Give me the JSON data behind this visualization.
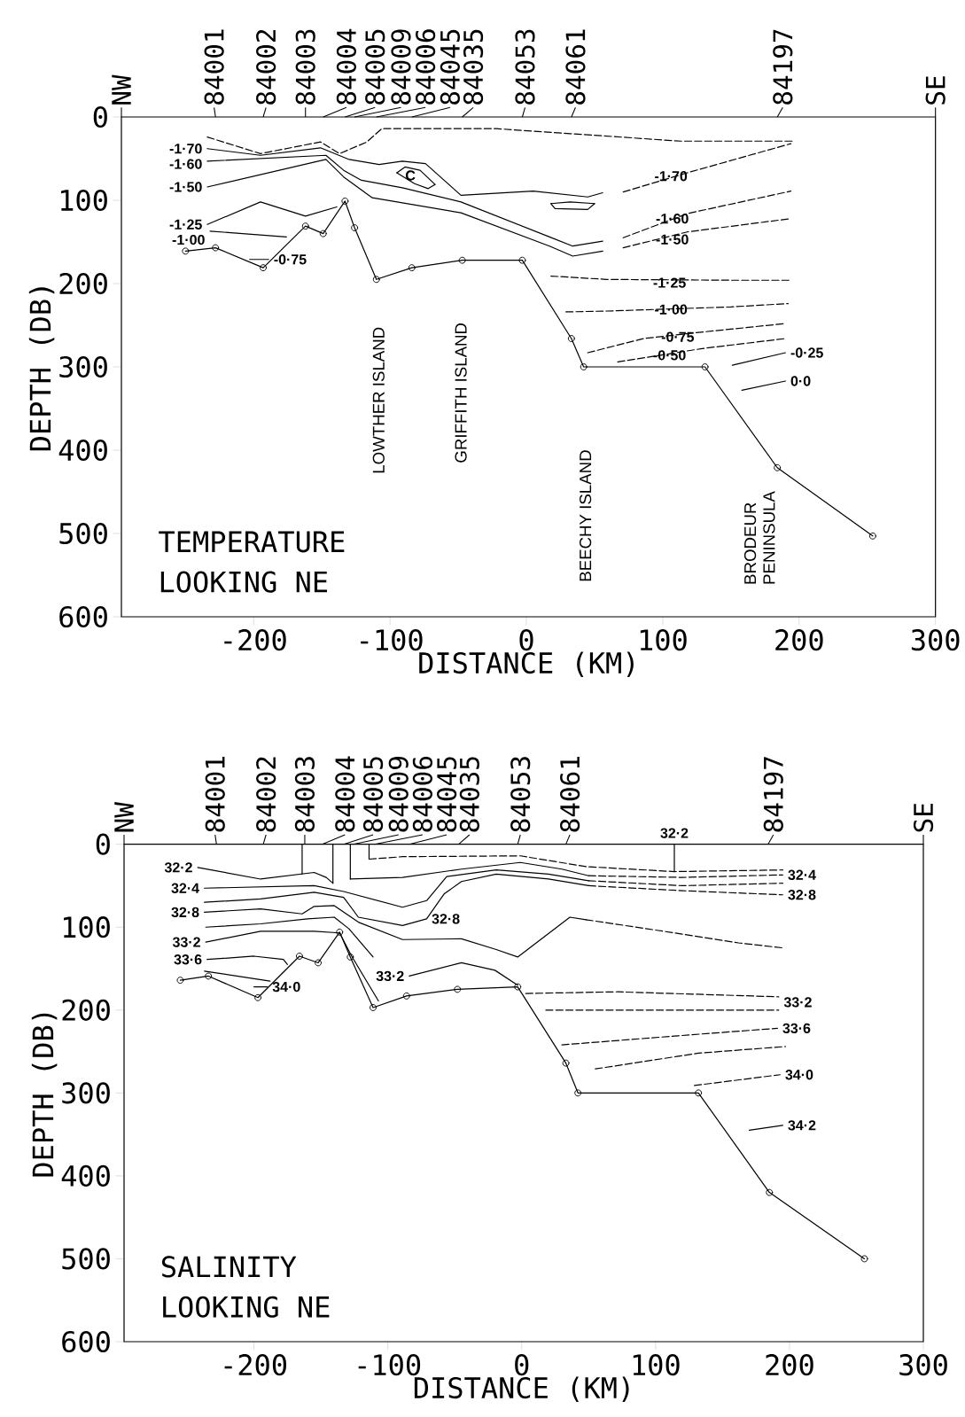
{
  "chart_data": [
    {
      "type": "line",
      "title": "TEMPERATURE",
      "subtitle": "LOOKING NE",
      "xlabel": "DISTANCE (KM)",
      "ylabel": "DEPTH (DB)",
      "xlim": [
        -297,
        300
      ],
      "ylim": [
        600,
        0
      ],
      "xticks": [
        -200,
        -100,
        0,
        100,
        200,
        300
      ],
      "yticks": [
        0,
        100,
        200,
        300,
        400,
        500,
        600
      ],
      "series": [
        {
          "color": "#000000",
          "marker": "circle",
          "x": [
            -250,
            -228,
            -193,
            -162,
            -149,
            -133,
            -126,
            -110,
            -84,
            -47,
            -3,
            33,
            42,
            131,
            184,
            254
          ],
          "values": [
            161,
            157,
            181,
            131,
            140,
            101,
            133,
            195,
            181,
            172,
            172,
            266,
            300,
            300,
            421,
            503
          ]
        },
        {
          "color": "#000000",
          "line_style": "dashed",
          "x": [
            -234,
            -195,
            -151,
            -137,
            -117,
            -106,
            -22,
            32,
            113,
            196
          ],
          "values": [
            24,
            44,
            30,
            44,
            30,
            14,
            14,
            20,
            29,
            29
          ]
        },
        {
          "color": "#000000",
          "line_style": "solid",
          "x": [
            -234,
            -195,
            -151,
            -130,
            -108,
            -91,
            -74,
            -48,
            5,
            45,
            56
          ],
          "values": [
            38,
            46,
            37,
            51,
            57,
            53,
            56,
            94,
            89,
            96,
            91
          ]
        },
        {
          "color": "#000000",
          "line_style": "dashed",
          "x": [
            71,
            118,
            194
          ],
          "values": [
            90,
            67,
            32
          ]
        },
        {
          "color": "#000000",
          "line_style": "solid",
          "x": [
            -95,
            -89,
            -78,
            -67
          ],
          "values": [
            67,
            60,
            64,
            81
          ]
        },
        {
          "color": "#000000",
          "line_style": "solid",
          "x": [
            -95,
            -82,
            -72,
            -67
          ],
          "values": [
            67,
            80,
            86,
            81
          ]
        },
        {
          "color": "#000000",
          "line_style": "solid",
          "x": [
            18,
            32,
            50
          ],
          "values": [
            104,
            102,
            104
          ]
        },
        {
          "color": "#000000",
          "line_style": "solid",
          "x": [
            18,
            21,
            45,
            50
          ],
          "values": [
            104,
            110,
            111,
            104
          ]
        },
        {
          "color": "#000000",
          "line_style": "solid",
          "x": [
            -234,
            -147,
            -134,
            -121,
            -91,
            -48,
            17,
            34,
            56
          ],
          "values": [
            53,
            46,
            64,
            76,
            85,
            102,
            144,
            155,
            149
          ]
        },
        {
          "color": "#000000",
          "line_style": "dashed",
          "x": [
            71,
            118,
            194
          ],
          "values": [
            145,
            116,
            89
          ]
        },
        {
          "color": "#000000",
          "line_style": "solid",
          "x": [
            -234,
            -147,
            -134,
            -113,
            -48,
            17,
            34,
            56
          ],
          "values": [
            84,
            51,
            72,
            97,
            115,
            155,
            167,
            161
          ]
        },
        {
          "color": "#000000",
          "line_style": "dashed",
          "x": [
            71,
            118,
            194
          ],
          "values": [
            157,
            138,
            122
          ]
        },
        {
          "color": "#000000",
          "line_style": "solid",
          "x": [
            -234,
            -195,
            -162,
            -139
          ],
          "values": [
            129,
            102,
            119,
            108
          ]
        },
        {
          "color": "#000000",
          "line_style": "dashed",
          "x": [
            18,
            59,
            150,
            194
          ],
          "values": [
            191,
            195,
            196,
            196
          ]
        },
        {
          "color": "#000000",
          "line_style": "solid",
          "x": [
            -232,
            -176
          ],
          "values": [
            137,
            144
          ]
        },
        {
          "color": "#000000",
          "line_style": "dashed",
          "x": [
            29,
            59,
            150,
            192
          ],
          "values": [
            234,
            233,
            228,
            224
          ]
        },
        {
          "color": "#000000",
          "line_style": "solid",
          "x": [
            -203,
            -189
          ],
          "values": [
            171,
            171
          ]
        },
        {
          "color": "#000000",
          "line_style": "dashed",
          "x": [
            45,
            86,
            130,
            190
          ],
          "values": [
            283,
            266,
            258,
            248
          ]
        },
        {
          "color": "#000000",
          "line_style": "dashed",
          "x": [
            67,
            129,
            190
          ],
          "values": [
            294,
            278,
            266
          ]
        },
        {
          "color": "#000000",
          "line_style": "solid",
          "x": [
            151,
            190
          ],
          "values": [
            298,
            283
          ]
        },
        {
          "color": "#000000",
          "line_style": "solid",
          "x": [
            158,
            190
          ],
          "values": [
            328,
            317
          ]
        }
      ],
      "annotations": [
        "NW",
        "SE",
        "LOWTHER ISLAND",
        "GRIFFITH  ISLAND",
        "BEECHY ISLAND",
        "BRODEUR PENINSULA",
        "C",
        "84001",
        "84002",
        "84003",
        "84004",
        "84005",
        "84009",
        "84006",
        "84045",
        "84035",
        "84053",
        "84061",
        "84197",
        {
          "text": "-1·70",
          "x": -234,
          "y": 38
        },
        {
          "text": "-1·60",
          "x": -234,
          "y": 53
        },
        {
          "text": "-1·50",
          "x": -234,
          "y": 84
        },
        {
          "text": "-1·25",
          "x": -234,
          "y": 129
        },
        {
          "text": "-1·00",
          "x": -232,
          "y": 137
        },
        {
          "text": "-0·75",
          "x": -189,
          "y": 171
        },
        {
          "text": "-1·70",
          "x": 106,
          "y": 71
        },
        {
          "text": "-1·60",
          "x": 107,
          "y": 122
        },
        {
          "text": "-1·50",
          "x": 107,
          "y": 147
        },
        {
          "text": "-1·25",
          "x": 105,
          "y": 199
        },
        {
          "text": "-1·00",
          "x": 106,
          "y": 231
        },
        {
          "text": "-0·75",
          "x": 111,
          "y": 264
        },
        {
          "text": "-0·50",
          "x": 105,
          "y": 286
        },
        {
          "text": "-0·25",
          "x": 190,
          "y": 283
        },
        {
          "text": "0·0",
          "x": 190,
          "y": 317
        }
      ]
    },
    {
      "type": "line",
      "title": "SALINITY",
      "subtitle": "LOOKING NE",
      "xlabel": "DISTANCE (KM)",
      "ylabel": "DEPTH (DB)",
      "xlim": [
        -297,
        300
      ],
      "ylim": [
        600,
        0
      ],
      "xticks": [
        -200,
        -100,
        0,
        100,
        200,
        300
      ],
      "yticks": [
        0,
        100,
        200,
        300,
        400,
        500,
        600
      ],
      "series": [
        {
          "color": "#000000",
          "marker": "circle",
          "x": [
            -255,
            -234,
            -197,
            -166,
            -152,
            -136,
            -128,
            -111,
            -86,
            -48,
            -3,
            33,
            42,
            132,
            185,
            256
          ],
          "values": [
            164,
            159,
            185,
            135,
            143,
            106,
            136,
            197,
            183,
            175,
            172,
            264,
            300,
            300,
            420,
            500
          ]
        },
        {
          "color": "#000000",
          "line_style": "solid",
          "x": [
            -164,
            -164
          ],
          "values": [
            0,
            36
          ]
        },
        {
          "color": "#000000",
          "line_style": "solid",
          "x": [
            -141,
            -141
          ],
          "values": [
            0,
            47
          ]
        },
        {
          "color": "#000000",
          "line_style": "solid",
          "x": [
            -128,
            -128
          ],
          "values": [
            0,
            42
          ]
        },
        {
          "color": "#000000",
          "line_style": "solid",
          "x": [
            -114,
            -114
          ],
          "values": [
            0,
            18
          ]
        },
        {
          "color": "#000000",
          "line_style": "dashed",
          "x": [
            -114,
            -89,
            -1,
            48,
            114,
            195
          ],
          "values": [
            18,
            15,
            14,
            27,
            33,
            31
          ]
        },
        {
          "color": "#000000",
          "line_style": "solid",
          "x": [
            -242,
            -195,
            -155,
            -146,
            -141
          ],
          "values": [
            28,
            42,
            34,
            40,
            47
          ]
        },
        {
          "color": "#000000",
          "line_style": "solid",
          "x": [
            -128,
            -89,
            -45,
            -1,
            30,
            50
          ],
          "values": [
            42,
            40,
            30,
            22,
            30,
            38
          ]
        },
        {
          "color": "#000000",
          "line_style": "dashed",
          "x": [
            50,
            120,
            195
          ],
          "values": [
            38,
            40,
            37
          ]
        },
        {
          "color": "#000000",
          "line_style": "solid",
          "x": [
            -237,
            -155,
            -133,
            -89,
            -71,
            -56,
            -19,
            20,
            50
          ],
          "values": [
            53,
            50,
            57,
            76,
            68,
            39,
            31,
            36,
            44
          ]
        },
        {
          "color": "#000000",
          "line_style": "dashed",
          "x": [
            50,
            120,
            195
          ],
          "values": [
            44,
            50,
            47
          ]
        },
        {
          "color": "#000000",
          "line_style": "solid",
          "x": [
            -237,
            -195,
            -155,
            -133,
            -122,
            -89,
            -71,
            -58,
            -45,
            -19,
            20,
            50
          ],
          "values": [
            70,
            66,
            58,
            64,
            88,
            98,
            90,
            60,
            45,
            36,
            42,
            50
          ]
        },
        {
          "color": "#000000",
          "line_style": "dashed",
          "x": [
            50,
            120,
            195
          ],
          "values": [
            50,
            56,
            61
          ]
        },
        {
          "color": "#000000",
          "line_style": "solid",
          "x": [
            -237,
            -195,
            -164,
            -155,
            -140,
            -122,
            -89,
            -45,
            -19,
            -3,
            36,
            48
          ],
          "values": [
            82,
            78,
            84,
            75,
            74,
            94,
            115,
            114,
            127,
            136,
            88,
            91
          ]
        },
        {
          "color": "#000000",
          "line_style": "dashed",
          "x": [
            48,
            102,
            162,
            195
          ],
          "values": [
            91,
            104,
            119,
            125
          ]
        },
        {
          "color": "#000000",
          "line_style": "solid",
          "x": [
            -236,
            -195,
            -160,
            -140,
            -129,
            -111
          ],
          "values": [
            100,
            96,
            90,
            88,
            102,
            136
          ]
        },
        {
          "color": "#000000",
          "line_style": "solid",
          "x": [
            -236,
            -195,
            -155,
            -136,
            -127,
            -107
          ],
          "values": [
            118,
            105,
            105,
            107,
            135,
            189
          ]
        },
        {
          "color": "#000000",
          "line_style": "solid",
          "x": [
            -84,
            -45,
            -20,
            -3
          ],
          "values": [
            159,
            143,
            152,
            170
          ]
        },
        {
          "color": "#000000",
          "line_style": "solid",
          "x": [
            -235,
            -200,
            -178,
            -175
          ],
          "values": [
            139,
            135,
            139,
            145
          ]
        },
        {
          "color": "#000000",
          "line_style": "solid",
          "x": [
            -237,
            -188
          ],
          "values": [
            153,
            165
          ]
        },
        {
          "color": "#000000",
          "line_style": "solid",
          "x": [
            -200,
            -190
          ],
          "values": [
            172,
            172
          ]
        },
        {
          "color": "#000000",
          "line_style": "dashed",
          "x": [
            3,
            72,
            192
          ],
          "values": [
            180,
            178,
            184
          ]
        },
        {
          "color": "#000000",
          "line_style": "dashed",
          "x": [
            18,
            192
          ],
          "values": [
            200,
            200
          ]
        },
        {
          "color": "#000000",
          "line_style": "dashed",
          "x": [
            30,
            117,
            191
          ],
          "values": [
            242,
            231,
            222
          ]
        },
        {
          "color": "#000000",
          "line_style": "dashed",
          "x": [
            55,
            132,
            197
          ],
          "values": [
            271,
            252,
            244
          ]
        },
        {
          "color": "#000000",
          "line_style": "dashed",
          "x": [
            129,
            193
          ],
          "values": [
            291,
            278
          ]
        },
        {
          "color": "#000000",
          "line_style": "solid",
          "x": [
            170,
            195
          ],
          "values": [
            345,
            339
          ]
        }
      ],
      "annotations": [
        {
          "text": "32·2",
          "x": 114,
          "y": 33
        },
        "NW",
        "SE",
        "84001",
        "84002",
        "84003",
        "84004",
        "84005",
        "84009",
        "84006",
        "84045",
        "84035",
        "84053",
        "84061",
        "84197",
        {
          "text": "32·2",
          "x": -242,
          "y": 28
        },
        {
          "text": "32·4",
          "x": -237,
          "y": 53
        },
        {
          "text": "32·8",
          "x": -237,
          "y": 82
        },
        {
          "text": "33·2",
          "x": -236,
          "y": 118
        },
        {
          "text": "33·6",
          "x": -235,
          "y": 139
        },
        {
          "text": "32·8",
          "x": -71,
          "y": 90
        },
        {
          "text": "33·2",
          "x": -84,
          "y": 159
        },
        {
          "text": "34·0",
          "x": -190,
          "y": 172
        },
        {
          "text": "32·4",
          "x": 195,
          "y": 37
        },
        {
          "text": "32·8",
          "x": 195,
          "y": 61
        },
        {
          "text": "33·2",
          "x": 192,
          "y": 184
        },
        {
          "text": "33·6",
          "x": 191,
          "y": 222
        },
        {
          "text": "34·0",
          "x": 193,
          "y": 278
        },
        {
          "text": "34·2",
          "x": 195,
          "y": 339
        }
      ]
    }
  ]
}
